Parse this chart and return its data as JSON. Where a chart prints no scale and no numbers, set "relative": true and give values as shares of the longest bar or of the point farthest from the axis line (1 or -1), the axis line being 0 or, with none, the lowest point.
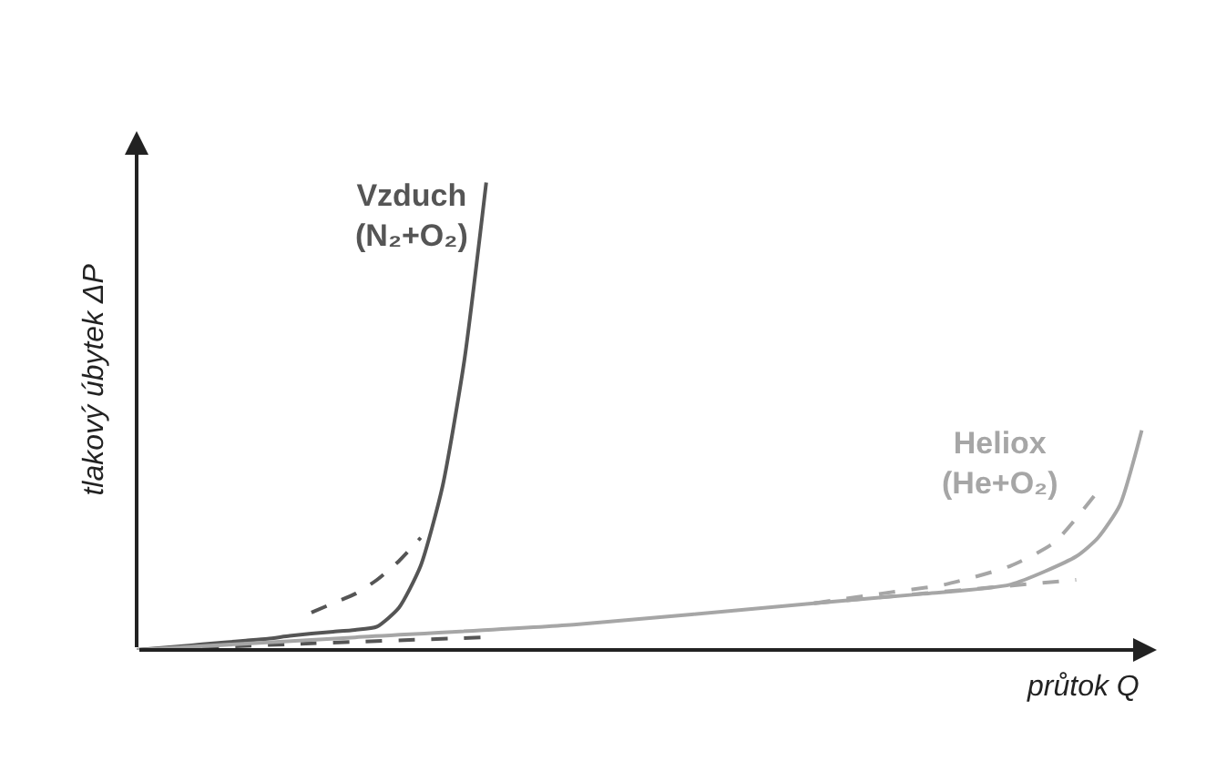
{
  "chart_data": {
    "type": "line",
    "relative": true,
    "xlabel": "průtok Q",
    "ylabel": "tlakový úbytek ΔP",
    "legend": false,
    "marker": "none",
    "categories": [
      null,
      null,
      null,
      null,
      null,
      null,
      null,
      null,
      null,
      null,
      null,
      null,
      null,
      null,
      null,
      null,
      null,
      null,
      null,
      null,
      null,
      null,
      null,
      null,
      null,
      null,
      null,
      null,
      null,
      null,
      null,
      null,
      null,
      null,
      null,
      null,
      null,
      null,
      null,
      null,
      null,
      null,
      null,
      null,
      null,
      null,
      null
    ],
    "series": [
      {
        "name": "Vzduch\n(N₂+O₂)",
        "color": "#555555",
        "line_style": "solid",
        "values": [
          0,
          0.004,
          0.008,
          0.012,
          0.016,
          0.02,
          0.024,
          0.03,
          0.035,
          0.039,
          0.043,
          0.05,
          0.09,
          0.18,
          0.35,
          0.62,
          1.0,
          null,
          null,
          null,
          null,
          null,
          null,
          null,
          null,
          null,
          null,
          null,
          null,
          null,
          null,
          null,
          null,
          null,
          null,
          null,
          null,
          null,
          null,
          null,
          null,
          null,
          null,
          null,
          null,
          null,
          null
        ]
      },
      {
        "color": "#555555",
        "line_style": "dashed",
        "values": [
          null,
          null,
          null,
          null,
          null,
          null,
          null,
          null,
          0.08,
          0.1,
          0.12,
          0.15,
          0.19,
          0.24,
          null,
          null,
          null,
          null,
          null,
          null,
          null,
          null,
          null,
          null,
          null,
          null,
          null,
          null,
          null,
          null,
          null,
          null,
          null,
          null,
          null,
          null,
          null,
          null,
          null,
          null,
          null,
          null,
          null,
          null,
          null,
          null,
          null
        ]
      },
      {
        "color": "#555555",
        "line_style": "dashed",
        "values": [
          0,
          null,
          null,
          null,
          null,
          null,
          null,
          null,
          0.014,
          null,
          null,
          null,
          null,
          null,
          null,
          null,
          0.027,
          null,
          null,
          null,
          null,
          null,
          null,
          null,
          null,
          null,
          null,
          null,
          null,
          null,
          null,
          null,
          null,
          null,
          null,
          null,
          null,
          null,
          null,
          null,
          null,
          null,
          null,
          null,
          null,
          null,
          null
        ]
      },
      {
        "name": "Heliox\n(He+O₂)",
        "color": "#a6a6a6",
        "line_style": "solid",
        "values": [
          0,
          null,
          null,
          null,
          null,
          null,
          null,
          null,
          null,
          null,
          0.027,
          null,
          null,
          null,
          null,
          null,
          null,
          null,
          null,
          null,
          0.054,
          null,
          null,
          null,
          null,
          null,
          null,
          null,
          null,
          null,
          null,
          0.1,
          null,
          null,
          null,
          null,
          0.12,
          null,
          null,
          null,
          0.14,
          null,
          null,
          0.2,
          0.24,
          0.31,
          0.47
        ]
      },
      {
        "color": "#a6a6a6",
        "line_style": "dashed",
        "values": [
          null,
          null,
          null,
          null,
          null,
          null,
          null,
          null,
          null,
          null,
          null,
          null,
          null,
          null,
          null,
          null,
          null,
          null,
          null,
          null,
          null,
          null,
          null,
          null,
          null,
          null,
          null,
          null,
          null,
          null,
          null,
          0.1,
          null,
          null,
          0.12,
          null,
          null,
          0.14,
          null,
          null,
          0.18,
          null,
          0.23,
          null,
          0.34,
          null,
          null
        ]
      },
      {
        "color": "#a6a6a6",
        "line_style": "dashed",
        "values": [
          null,
          null,
          null,
          null,
          null,
          null,
          null,
          null,
          null,
          null,
          null,
          null,
          null,
          null,
          null,
          null,
          null,
          null,
          null,
          null,
          null,
          null,
          null,
          null,
          null,
          null,
          null,
          null,
          null,
          null,
          null,
          0.1,
          null,
          null,
          null,
          null,
          null,
          null,
          null,
          null,
          null,
          null,
          null,
          0.15,
          null,
          null,
          null
        ]
      }
    ]
  }
}
